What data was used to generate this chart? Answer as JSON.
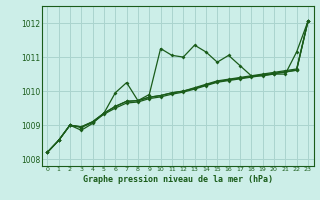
{
  "title": "Graphe pression niveau de la mer (hPa)",
  "bg_color": "#cceee8",
  "grid_color": "#aad4ce",
  "line_color": "#1a5c1a",
  "xlim": [
    -0.5,
    23.5
  ],
  "ylim": [
    1007.8,
    1012.5
  ],
  "yticks": [
    1008,
    1009,
    1010,
    1011,
    1012
  ],
  "xticks": [
    0,
    1,
    2,
    3,
    4,
    5,
    6,
    7,
    8,
    9,
    10,
    11,
    12,
    13,
    14,
    15,
    16,
    17,
    18,
    19,
    20,
    21,
    22,
    23
  ],
  "series": [
    [
      1008.2,
      1008.55,
      1009.0,
      1008.85,
      1009.05,
      1009.35,
      1009.95,
      1010.25,
      1009.72,
      1009.9,
      1011.25,
      1011.05,
      1011.0,
      1011.35,
      1011.15,
      1010.85,
      1011.05,
      1010.75,
      1010.45,
      1010.45,
      1010.5,
      1010.5,
      1011.15,
      1012.05
    ],
    [
      1008.2,
      1008.55,
      1009.0,
      1008.95,
      1009.1,
      1009.35,
      1009.55,
      1009.7,
      1009.72,
      1009.82,
      1009.87,
      1009.95,
      1010.0,
      1010.08,
      1010.18,
      1010.28,
      1010.33,
      1010.38,
      1010.43,
      1010.48,
      1010.52,
      1010.57,
      1010.62,
      1012.05
    ],
    [
      1008.2,
      1008.55,
      1009.0,
      1008.95,
      1009.1,
      1009.35,
      1009.55,
      1009.7,
      1009.72,
      1009.82,
      1009.87,
      1009.95,
      1010.0,
      1010.1,
      1010.2,
      1010.3,
      1010.35,
      1010.4,
      1010.45,
      1010.5,
      1010.55,
      1010.6,
      1010.65,
      1012.05
    ],
    [
      1008.2,
      1008.55,
      1009.0,
      1008.93,
      1009.08,
      1009.32,
      1009.5,
      1009.65,
      1009.68,
      1009.78,
      1009.83,
      1009.91,
      1009.97,
      1010.06,
      1010.16,
      1010.26,
      1010.31,
      1010.36,
      1010.41,
      1010.46,
      1010.51,
      1010.56,
      1010.61,
      1012.05
    ]
  ]
}
